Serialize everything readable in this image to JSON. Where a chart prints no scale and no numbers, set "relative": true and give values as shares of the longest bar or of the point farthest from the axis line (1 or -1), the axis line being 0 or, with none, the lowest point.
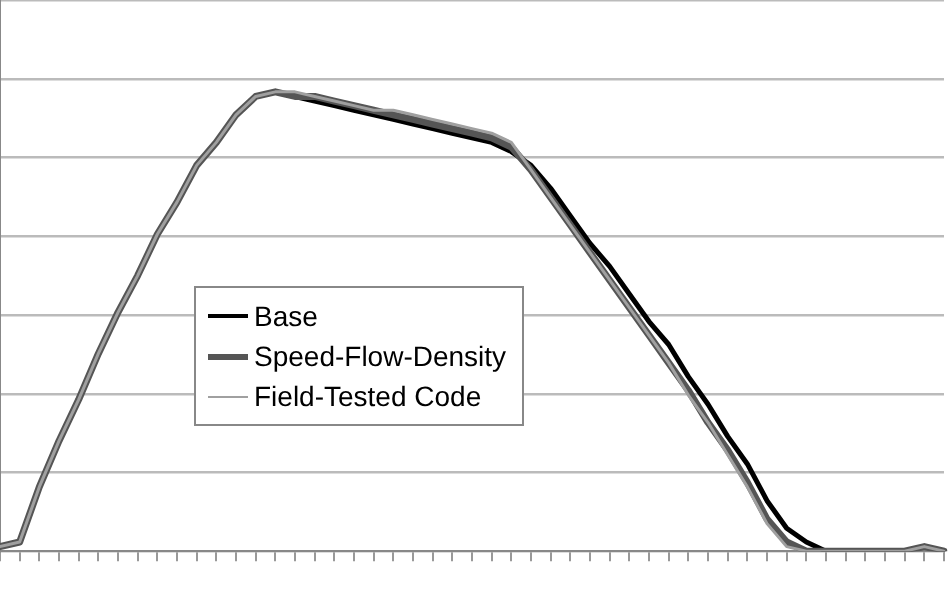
{
  "chart_data": {
    "type": "line",
    "relative": true,
    "grid": "y",
    "legend": "left",
    "marker": "none",
    "line_style": "solid",
    "categories": [
      null,
      null,
      null,
      null,
      null,
      null,
      null,
      null,
      null,
      null,
      null,
      null,
      null,
      null,
      null,
      null,
      null,
      null,
      null,
      null,
      null,
      null,
      null,
      null,
      null,
      null,
      null,
      null,
      null,
      null,
      null,
      null,
      null,
      null,
      null,
      null,
      null,
      null,
      null,
      null,
      null,
      null,
      null,
      null,
      null,
      null,
      null,
      null,
      null
    ],
    "series": [
      {
        "name": "Base",
        "color": "#000000",
        "values": [
          0.01,
          0.02,
          0.14,
          0.24,
          0.33,
          0.43,
          0.52,
          0.6,
          0.69,
          0.76,
          0.84,
          0.89,
          0.95,
          0.99,
          1,
          0.99,
          0.98,
          0.97,
          0.96,
          0.95,
          0.94,
          0.93,
          0.92,
          0.91,
          0.9,
          0.89,
          0.87,
          0.84,
          0.79,
          0.73,
          0.67,
          0.62,
          0.56,
          0.5,
          0.45,
          0.38,
          0.32,
          0.25,
          0.19,
          0.11,
          0.05,
          0.02,
          0,
          0,
          0,
          0,
          0,
          0.01,
          0
        ]
      },
      {
        "name": "Speed-Flow-Density",
        "color": "#555555",
        "values": [
          0.01,
          0.02,
          0.14,
          0.24,
          0.33,
          0.43,
          0.52,
          0.6,
          0.69,
          0.76,
          0.84,
          0.89,
          0.95,
          0.99,
          1,
          0.99,
          0.99,
          0.98,
          0.97,
          0.96,
          0.95,
          0.94,
          0.93,
          0.92,
          0.91,
          0.9,
          0.88,
          0.83,
          0.77,
          0.71,
          0.65,
          0.59,
          0.53,
          0.47,
          0.41,
          0.35,
          0.28,
          0.22,
          0.15,
          0.07,
          0.02,
          0,
          0,
          0,
          0,
          0,
          0,
          0.01,
          0
        ]
      },
      {
        "name": "Field-Tested Code",
        "color": "#a0a0a0",
        "values": [
          0.01,
          0.02,
          0.14,
          0.24,
          0.33,
          0.43,
          0.52,
          0.6,
          0.69,
          0.76,
          0.84,
          0.89,
          0.95,
          0.99,
          1,
          1,
          0.99,
          0.98,
          0.97,
          0.96,
          0.96,
          0.95,
          0.94,
          0.93,
          0.92,
          0.91,
          0.89,
          0.83,
          0.77,
          0.71,
          0.65,
          0.59,
          0.53,
          0.47,
          0.41,
          0.34,
          0.28,
          0.21,
          0.14,
          0.06,
          0.01,
          0,
          0,
          0,
          0,
          0,
          0,
          0.01,
          0
        ]
      }
    ]
  }
}
